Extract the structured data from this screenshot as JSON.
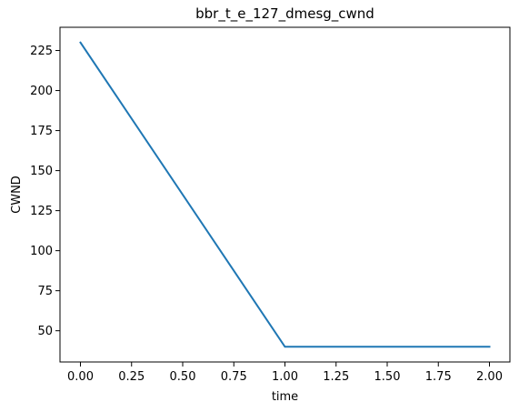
{
  "chart_data": {
    "type": "line",
    "title": "bbr_t_e_127_dmesg_cwnd",
    "xlabel": "time",
    "ylabel": "CWND",
    "xlim": [
      -0.1,
      2.1
    ],
    "ylim": [
      30.5,
      239.5
    ],
    "xticks": [
      0.0,
      0.25,
      0.5,
      0.75,
      1.0,
      1.25,
      1.5,
      1.75,
      2.0
    ],
    "xtick_labels": [
      "0.00",
      "0.25",
      "0.50",
      "0.75",
      "1.00",
      "1.25",
      "1.50",
      "1.75",
      "2.00"
    ],
    "yticks": [
      50,
      75,
      100,
      125,
      150,
      175,
      200,
      225
    ],
    "ytick_labels": [
      "50",
      "75",
      "100",
      "125",
      "150",
      "175",
      "200",
      "225"
    ],
    "grid": false,
    "series": [
      {
        "color": "#1f77b4",
        "x": [
          0.0,
          1.0,
          2.0
        ],
        "y": [
          230,
          40,
          40
        ]
      }
    ]
  }
}
